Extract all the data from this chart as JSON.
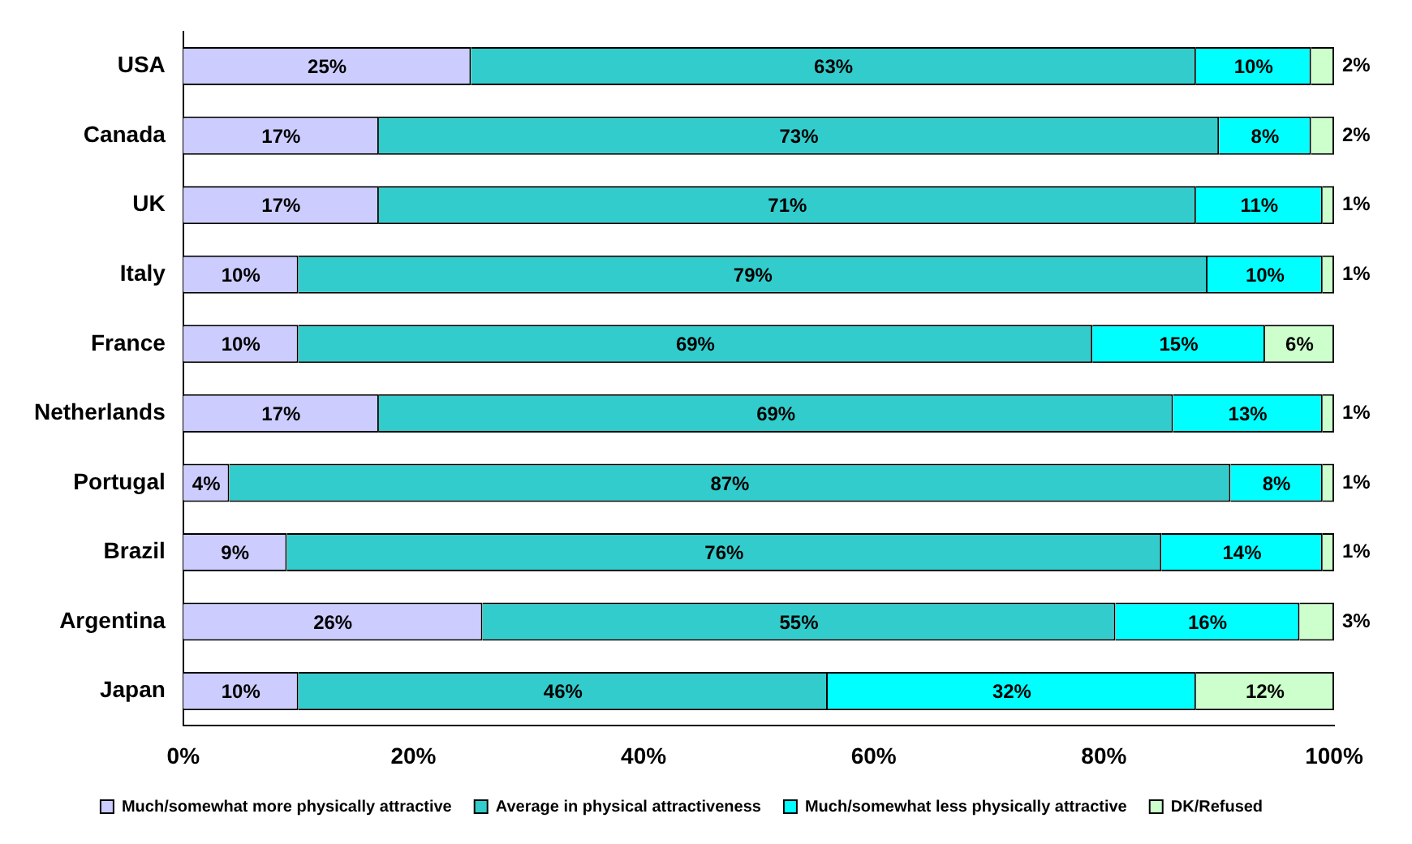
{
  "chart_data": {
    "type": "bar",
    "orientation": "horizontal",
    "stacked": true,
    "legend": "bottom",
    "grid": false,
    "categories": [
      "USA",
      "Canada",
      "UK",
      "Italy",
      "France",
      "Netherlands",
      "Portugal",
      "Brazil",
      "Argentina",
      "Japan"
    ],
    "xlim": [
      0,
      100
    ],
    "xticks": [
      {
        "value": 0,
        "label": "0%"
      },
      {
        "value": 20,
        "label": "20%"
      },
      {
        "value": 40,
        "label": "40%"
      },
      {
        "value": 60,
        "label": "60%"
      },
      {
        "value": 80,
        "label": "80%"
      },
      {
        "value": 100,
        "label": "100%"
      }
    ],
    "series": [
      {
        "name": "Much/somewhat more physically attractive",
        "color": "#ccccff",
        "values": [
          25,
          17,
          17,
          10,
          10,
          17,
          4,
          9,
          26,
          10
        ],
        "value_labels": [
          "25%",
          "17%",
          "17%",
          "10%",
          "10%",
          "17%",
          "4%",
          "9%",
          "26%",
          "10%"
        ]
      },
      {
        "name": "Average in physical attractiveness",
        "color": "#33cccc",
        "values": [
          63,
          73,
          71,
          79,
          69,
          69,
          87,
          76,
          55,
          46
        ],
        "value_labels": [
          "63%",
          "73%",
          "71%",
          "79%",
          "69%",
          "69%",
          "87%",
          "76%",
          "55%",
          "46%"
        ]
      },
      {
        "name": "Much/somewhat less physically attractive",
        "color": "#00ffff",
        "values": [
          10,
          8,
          11,
          10,
          15,
          13,
          8,
          14,
          16,
          32
        ],
        "value_labels": [
          "10%",
          "8%",
          "11%",
          "10%",
          "15%",
          "13%",
          "8%",
          "14%",
          "16%",
          "32%"
        ]
      },
      {
        "name": "DK/Refused",
        "color": "#ccffcc",
        "values": [
          2,
          2,
          1,
          1,
          6,
          1,
          1,
          1,
          3,
          12
        ],
        "value_labels": [
          "2%",
          "2%",
          "1%",
          "1%",
          "6%",
          "1%",
          "1%",
          "1%",
          "3%",
          "12%"
        ]
      }
    ]
  }
}
